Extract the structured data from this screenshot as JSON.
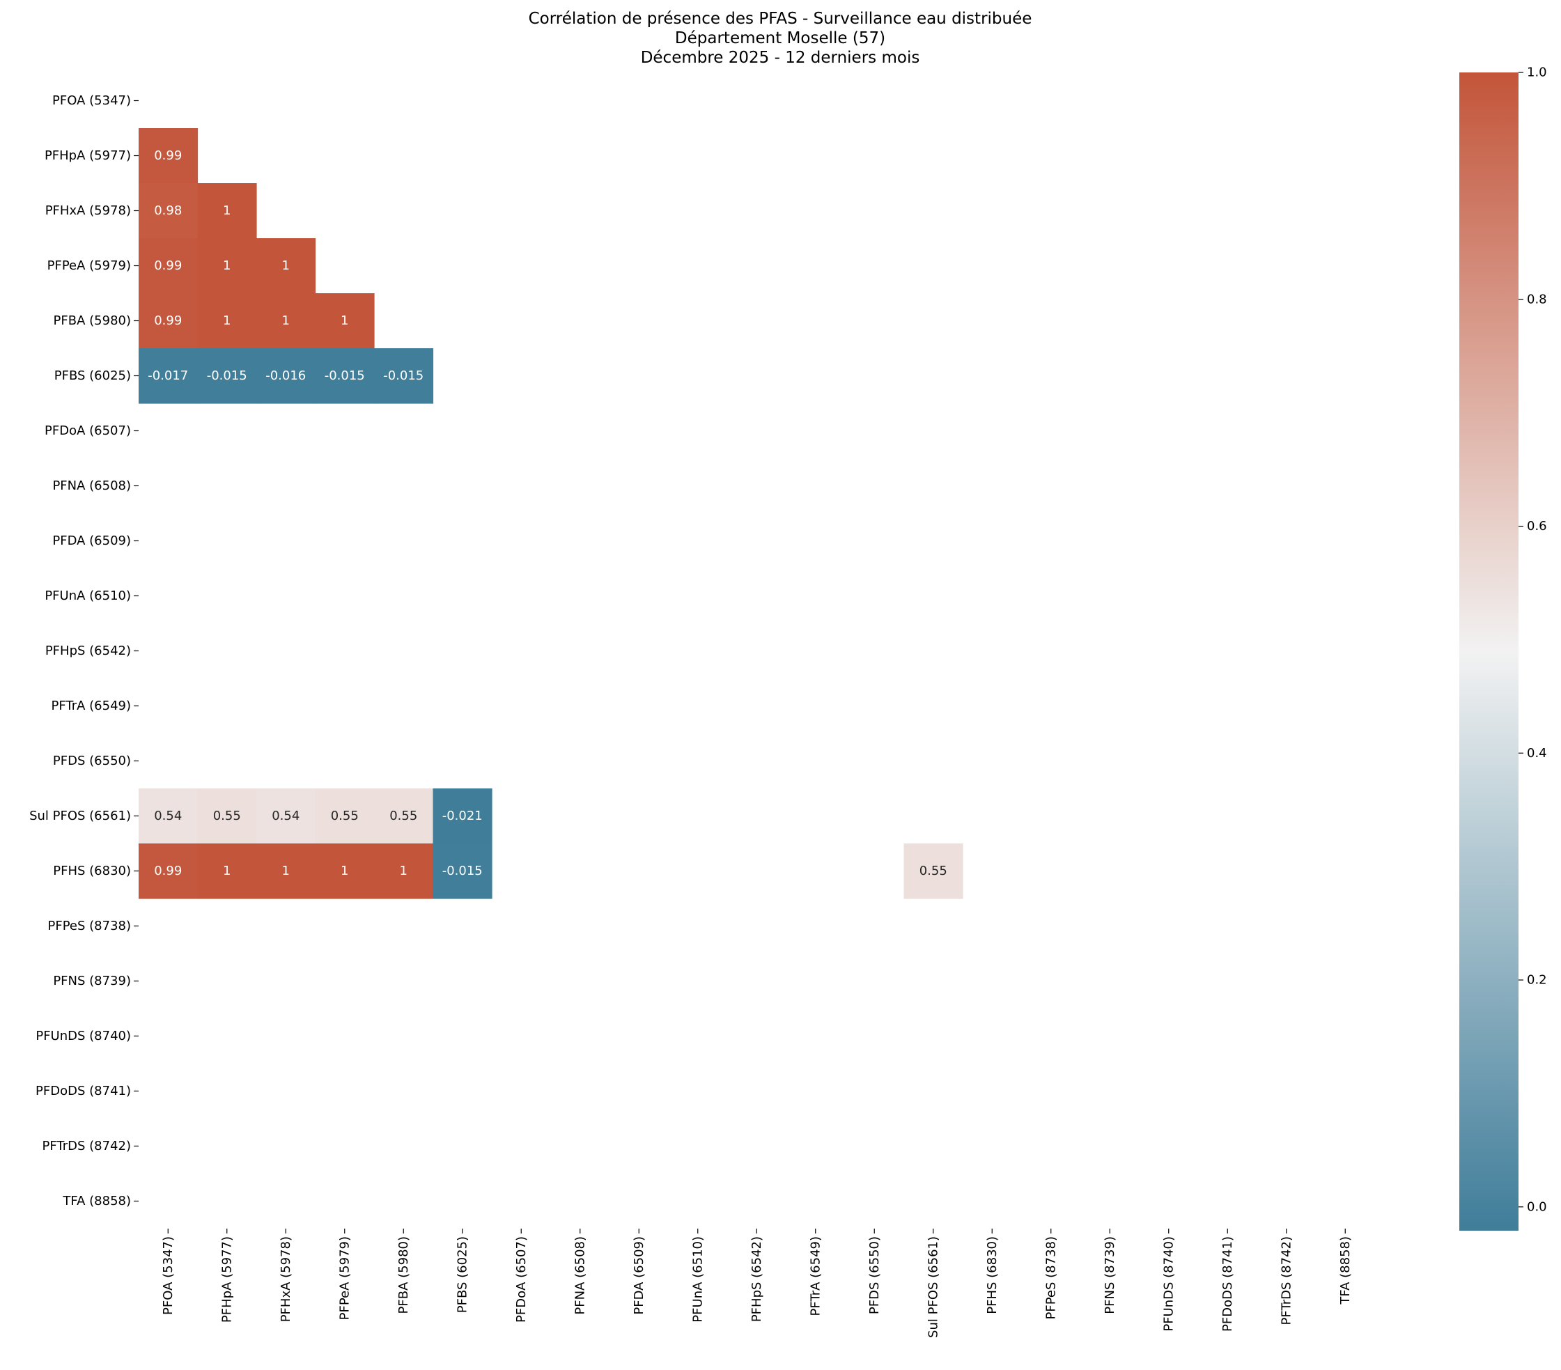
{
  "chart_data": {
    "type": "heatmap",
    "title": [
      "Corrélation de présence des PFAS - Surveillance eau distribuée",
      "Département Moselle (57)",
      "Décembre 2025 - 12 derniers mois"
    ],
    "xlabel": "",
    "ylabel": "",
    "labels": [
      "PFOA (5347)",
      "PFHpA (5977)",
      "PFHxA (5978)",
      "PFPeA (5979)",
      "PFBA (5980)",
      "PFBS (6025)",
      "PFDoA (6507)",
      "PFNA (6508)",
      "PFDA (6509)",
      "PFUnA (6510)",
      "PFHpS (6542)",
      "PFTrA (6549)",
      "PFDS (6550)",
      "Sul PFOS (6561)",
      "PFHS (6830)",
      "PFPeS (8738)",
      "PFNS (8739)",
      "PFUnDS (8740)",
      "PFDoDS (8741)",
      "PFTrDS (8742)",
      "TFA (8858)"
    ],
    "cells": [
      {
        "row": 1,
        "col": 0,
        "value": 0.99
      },
      {
        "row": 2,
        "col": 0,
        "value": 0.98
      },
      {
        "row": 2,
        "col": 1,
        "value": 1
      },
      {
        "row": 3,
        "col": 0,
        "value": 0.99
      },
      {
        "row": 3,
        "col": 1,
        "value": 1
      },
      {
        "row": 3,
        "col": 2,
        "value": 1
      },
      {
        "row": 4,
        "col": 0,
        "value": 0.99
      },
      {
        "row": 4,
        "col": 1,
        "value": 1
      },
      {
        "row": 4,
        "col": 2,
        "value": 1
      },
      {
        "row": 4,
        "col": 3,
        "value": 1
      },
      {
        "row": 5,
        "col": 0,
        "value": -0.017
      },
      {
        "row": 5,
        "col": 1,
        "value": -0.015
      },
      {
        "row": 5,
        "col": 2,
        "value": -0.016
      },
      {
        "row": 5,
        "col": 3,
        "value": -0.015
      },
      {
        "row": 5,
        "col": 4,
        "value": -0.015
      },
      {
        "row": 13,
        "col": 0,
        "value": 0.54
      },
      {
        "row": 13,
        "col": 1,
        "value": 0.55
      },
      {
        "row": 13,
        "col": 2,
        "value": 0.54
      },
      {
        "row": 13,
        "col": 3,
        "value": 0.55
      },
      {
        "row": 13,
        "col": 4,
        "value": 0.55
      },
      {
        "row": 13,
        "col": 5,
        "value": -0.021
      },
      {
        "row": 14,
        "col": 0,
        "value": 0.99
      },
      {
        "row": 14,
        "col": 1,
        "value": 1
      },
      {
        "row": 14,
        "col": 2,
        "value": 1
      },
      {
        "row": 14,
        "col": 3,
        "value": 1
      },
      {
        "row": 14,
        "col": 4,
        "value": 1
      },
      {
        "row": 14,
        "col": 5,
        "value": -0.015
      },
      {
        "row": 14,
        "col": 13,
        "value": 0.55
      }
    ],
    "masked": "upper triangle and missing values are blank",
    "colorbar": {
      "ticks": [
        0.0,
        0.2,
        0.4,
        0.6,
        0.8,
        1.0
      ],
      "tick_labels": [
        "0.0",
        "0.2",
        "0.4",
        "0.6",
        "0.8",
        "1.0"
      ],
      "vmin": -0.021,
      "vmax": 1.0
    },
    "colormap": {
      "low": "#3f7d99",
      "mid": "#f2f2f2",
      "high": "#c3553a"
    }
  }
}
